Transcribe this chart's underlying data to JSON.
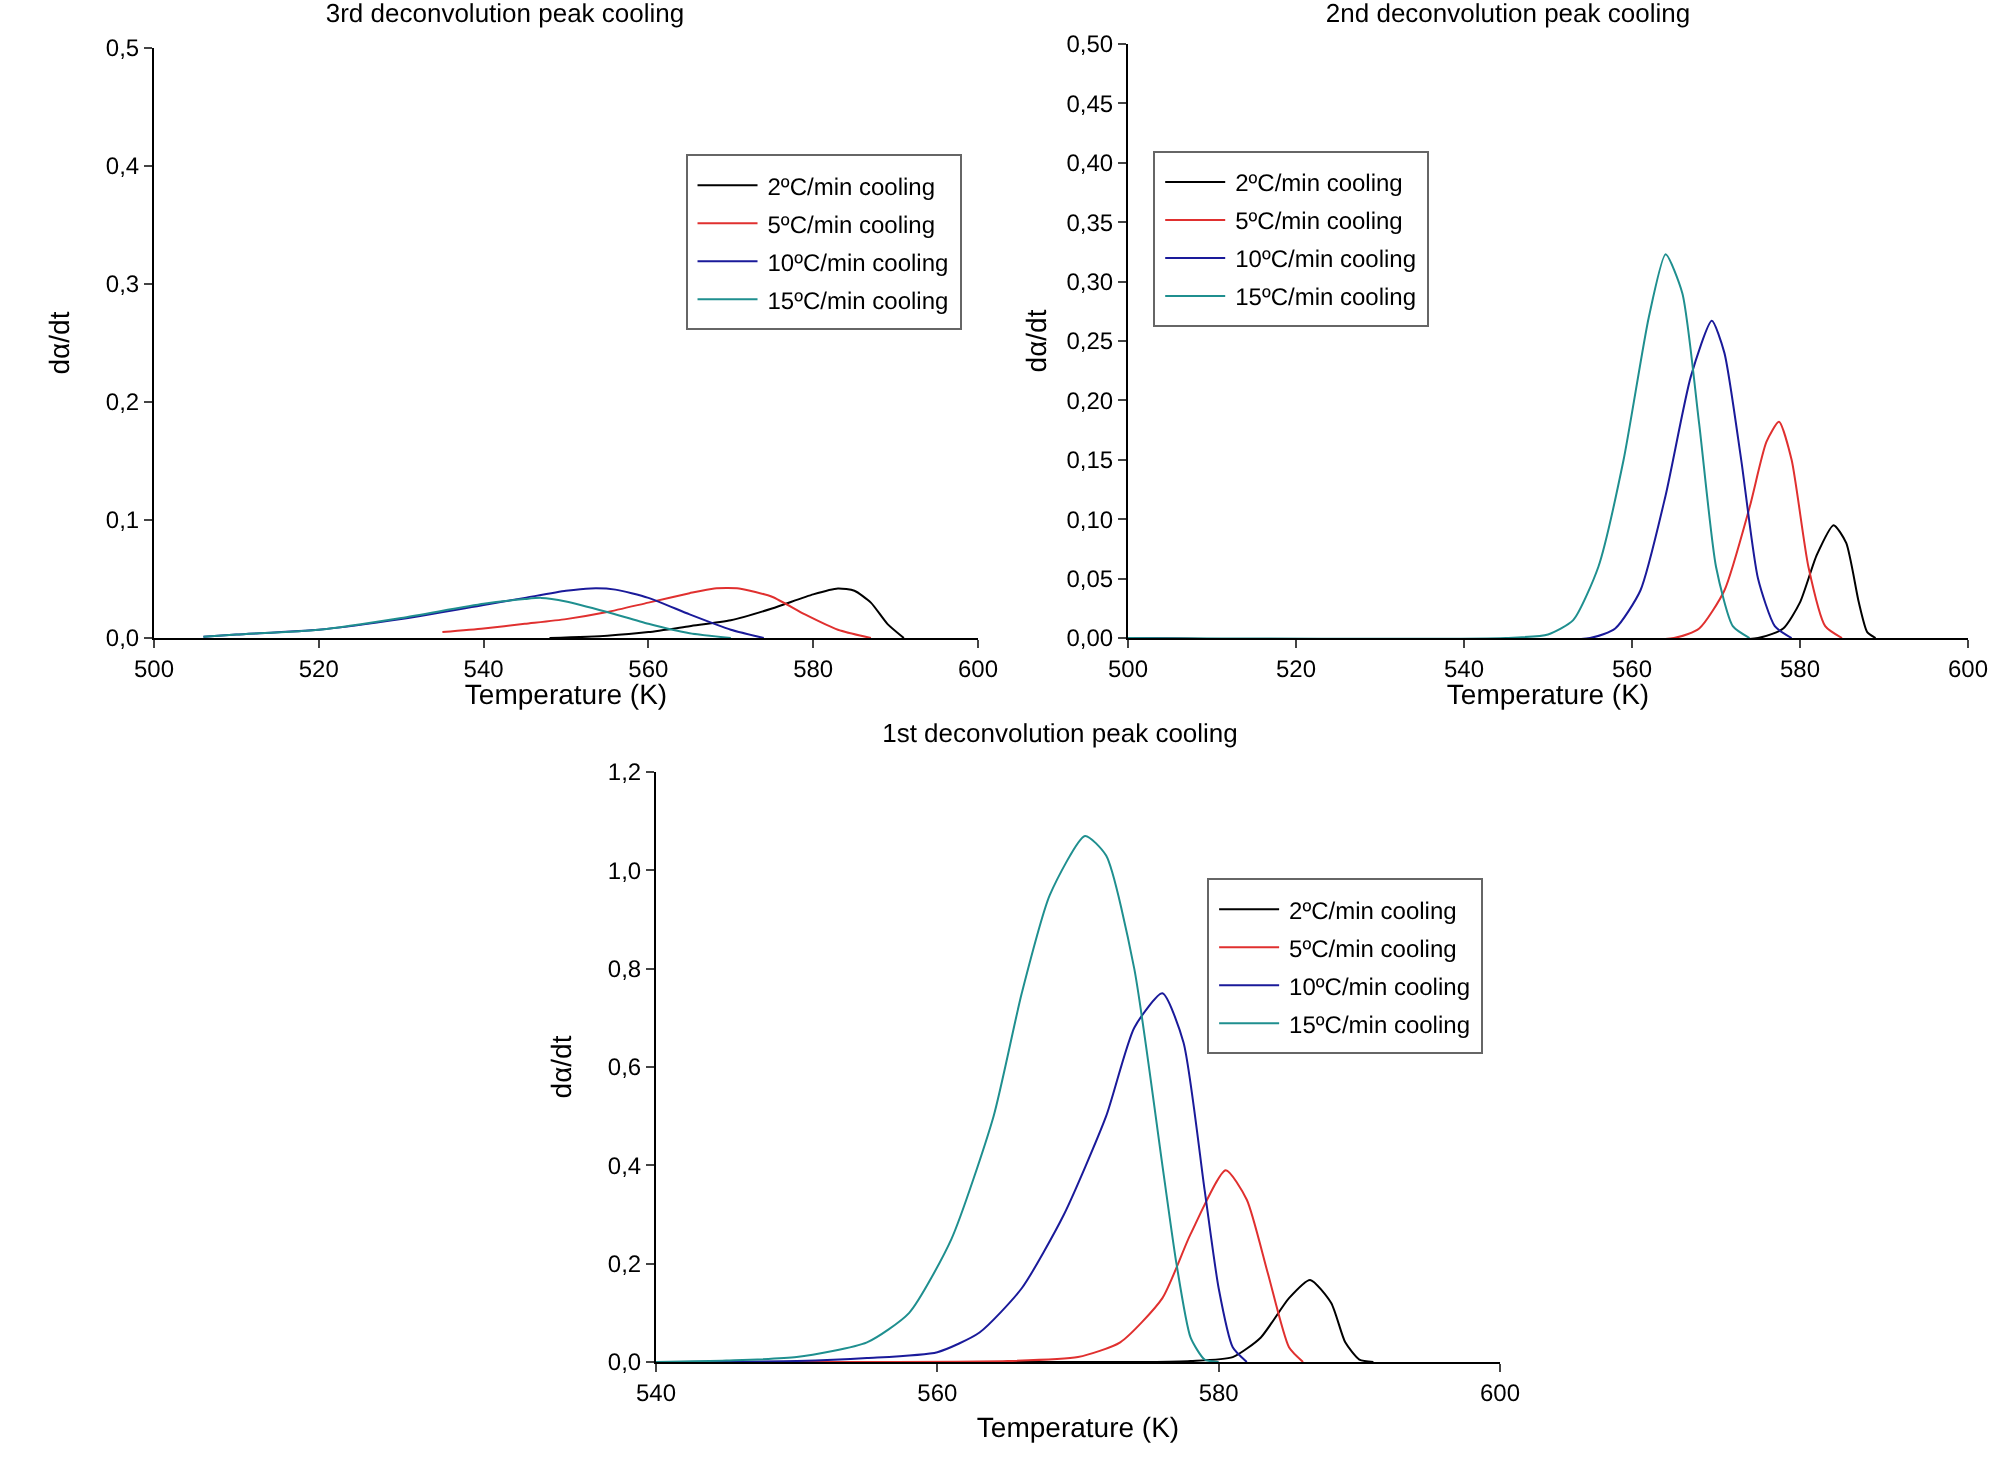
{
  "chart_data": [
    {
      "type": "line",
      "title": "3rd deconvolution peak cooling",
      "xlabel": "Temperature (K)",
      "ylabel": "dα/dt",
      "xlim": [
        500,
        600
      ],
      "xticks": [
        500,
        520,
        540,
        560,
        580,
        600
      ],
      "ylim": [
        0,
        0.5
      ],
      "yticks": [
        {
          "value": 0,
          "label": "0,0"
        },
        {
          "value": 0.1,
          "label": "0,1"
        },
        {
          "value": 0.2,
          "label": "0,2"
        },
        {
          "value": 0.3,
          "label": "0,3"
        },
        {
          "value": 0.4,
          "label": "0,4"
        },
        {
          "value": 0.5,
          "label": "0,5"
        }
      ],
      "grid": false,
      "legend": "top right",
      "marker": "none",
      "line_style": "solid",
      "series": [
        {
          "name": "2ºC/min cooling",
          "color": "#000000",
          "x": [
            548,
            555,
            560,
            565,
            570,
            575,
            580,
            583,
            585,
            587,
            589,
            591
          ],
          "values": [
            0,
            0.002,
            0.005,
            0.01,
            0.015,
            0.025,
            0.037,
            0.042,
            0.04,
            0.03,
            0.012,
            0
          ]
        },
        {
          "name": "5ºC/min cooling",
          "color": "#e0302f",
          "x": [
            535,
            540,
            545,
            550,
            555,
            560,
            565,
            568,
            571,
            575,
            579,
            583,
            587
          ],
          "values": [
            0.005,
            0.008,
            0.012,
            0.016,
            0.022,
            0.03,
            0.038,
            0.042,
            0.042,
            0.035,
            0.02,
            0.007,
            0
          ]
        },
        {
          "name": "10ºC/min cooling",
          "color": "#1a1a9a",
          "x": [
            506,
            510,
            520,
            530,
            540,
            545,
            550,
            553,
            556,
            560,
            565,
            570,
            574
          ],
          "values": [
            0.001,
            0.003,
            0.007,
            0.016,
            0.028,
            0.034,
            0.04,
            0.042,
            0.041,
            0.034,
            0.02,
            0.007,
            0
          ]
        },
        {
          "name": "15ºC/min cooling",
          "color": "#1f8f8f",
          "x": [
            506,
            510,
            520,
            530,
            540,
            545,
            547,
            550,
            555,
            560,
            565,
            570
          ],
          "values": [
            0.001,
            0.003,
            0.007,
            0.017,
            0.029,
            0.033,
            0.034,
            0.031,
            0.022,
            0.012,
            0.004,
            0
          ]
        }
      ]
    },
    {
      "type": "line",
      "title": "2nd deconvolution peak cooling",
      "xlabel": "Temperature (K)",
      "ylabel": "dα/dt",
      "xlim": [
        500,
        600
      ],
      "xticks": [
        500,
        520,
        540,
        560,
        580,
        600
      ],
      "ylim": [
        0,
        0.5
      ],
      "yticks": [
        {
          "value": 0,
          "label": "0,00"
        },
        {
          "value": 0.05,
          "label": "0,05"
        },
        {
          "value": 0.1,
          "label": "0,10"
        },
        {
          "value": 0.15,
          "label": "0,15"
        },
        {
          "value": 0.2,
          "label": "0,20"
        },
        {
          "value": 0.25,
          "label": "0,25"
        },
        {
          "value": 0.3,
          "label": "0,30"
        },
        {
          "value": 0.35,
          "label": "0,35"
        },
        {
          "value": 0.4,
          "label": "0,40"
        },
        {
          "value": 0.45,
          "label": "0,45"
        },
        {
          "value": 0.5,
          "label": "0,50"
        }
      ],
      "grid": false,
      "legend": "top left",
      "marker": "none",
      "line_style": "solid",
      "series": [
        {
          "name": "2ºC/min cooling",
          "color": "#000000",
          "x": [
            500,
            575,
            578,
            580,
            582,
            584,
            585.5,
            587,
            588,
            589
          ],
          "values": [
            0,
            0,
            0.008,
            0.03,
            0.07,
            0.095,
            0.08,
            0.03,
            0.005,
            0
          ]
        },
        {
          "name": "5ºC/min cooling",
          "color": "#e0302f",
          "x": [
            500,
            565,
            568,
            571,
            574,
            576,
            577.5,
            579,
            581,
            583,
            585
          ],
          "values": [
            0,
            0,
            0.008,
            0.04,
            0.11,
            0.165,
            0.182,
            0.15,
            0.06,
            0.01,
            0
          ]
        },
        {
          "name": "10ºC/min cooling",
          "color": "#1a1a9a",
          "x": [
            500,
            555,
            558,
            561,
            564,
            567,
            569.5,
            571,
            573,
            575,
            577,
            579
          ],
          "values": [
            0,
            0,
            0.008,
            0.04,
            0.12,
            0.22,
            0.267,
            0.24,
            0.15,
            0.05,
            0.01,
            0
          ]
        },
        {
          "name": "15ºC/min cooling",
          "color": "#1f8f8f",
          "x": [
            500,
            545,
            550,
            553,
            556,
            559,
            562,
            564,
            566,
            568,
            570,
            572,
            574
          ],
          "values": [
            0,
            0,
            0.003,
            0.015,
            0.06,
            0.15,
            0.27,
            0.323,
            0.29,
            0.18,
            0.06,
            0.01,
            0
          ]
        }
      ]
    },
    {
      "type": "line",
      "title": "1st deconvolution peak cooling",
      "xlabel": "Temperature (K)",
      "ylabel": "dα/dt",
      "xlim": [
        540,
        600
      ],
      "xticks": [
        540,
        560,
        580,
        600
      ],
      "ylim": [
        0,
        1.2
      ],
      "yticks": [
        {
          "value": 0,
          "label": "0,0"
        },
        {
          "value": 0.2,
          "label": "0,2"
        },
        {
          "value": 0.4,
          "label": "0,4"
        },
        {
          "value": 0.6,
          "label": "0,6"
        },
        {
          "value": 0.8,
          "label": "0,8"
        },
        {
          "value": 1,
          "label": "1,0"
        },
        {
          "value": 1.2,
          "label": "1,2"
        }
      ],
      "grid": false,
      "legend": "top right",
      "marker": "none",
      "line_style": "solid",
      "series": [
        {
          "name": "2ºC/min cooling",
          "color": "#000000",
          "x": [
            540,
            575,
            578,
            581,
            583,
            585,
            586.5,
            588,
            589,
            590,
            591
          ],
          "values": [
            0,
            0,
            0.002,
            0.01,
            0.05,
            0.13,
            0.167,
            0.12,
            0.04,
            0.005,
            0
          ]
        },
        {
          "name": "5ºC/min cooling",
          "color": "#e0302f",
          "x": [
            540,
            565,
            570,
            573,
            576,
            578,
            580.5,
            582,
            583.5,
            585,
            586
          ],
          "values": [
            0,
            0.002,
            0.01,
            0.04,
            0.13,
            0.26,
            0.39,
            0.33,
            0.18,
            0.03,
            0
          ]
        },
        {
          "name": "10ºC/min cooling",
          "color": "#1a1a9a",
          "x": [
            540,
            550,
            555,
            560,
            563,
            566,
            569,
            572,
            574,
            576,
            577.5,
            579,
            580,
            581,
            582
          ],
          "values": [
            0,
            0.002,
            0.008,
            0.02,
            0.06,
            0.15,
            0.3,
            0.5,
            0.68,
            0.75,
            0.65,
            0.35,
            0.15,
            0.03,
            0
          ]
        },
        {
          "name": "15ºC/min cooling",
          "color": "#1f8f8f",
          "x": [
            540,
            545,
            550,
            555,
            558,
            561,
            564,
            566,
            568,
            570.5,
            572,
            574,
            576,
            577,
            578,
            579,
            580
          ],
          "values": [
            0,
            0.003,
            0.01,
            0.04,
            0.1,
            0.25,
            0.5,
            0.75,
            0.95,
            1.07,
            1.03,
            0.8,
            0.4,
            0.2,
            0.05,
            0.005,
            0
          ]
        }
      ]
    }
  ]
}
